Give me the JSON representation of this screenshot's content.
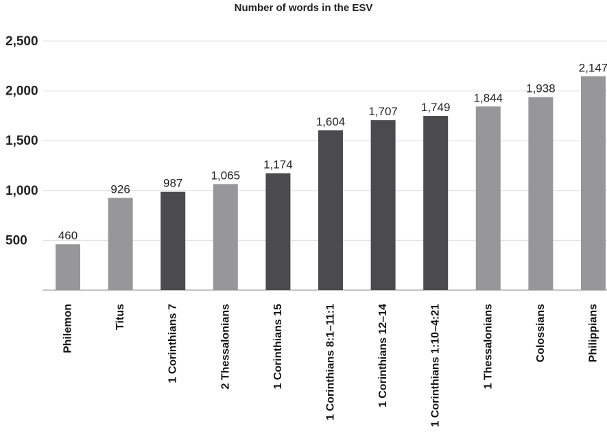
{
  "chart_data": {
    "type": "bar",
    "title": "Number of words in the ESV",
    "xlabel": "",
    "ylabel": "",
    "categories": [
      "Philemon",
      "Titus",
      "1 Corinthians 7",
      "2 Thessalonians",
      "1 Corinthians 15",
      "1 Corinthians 8:1–11:1",
      "1 Corinthians 12–14",
      "1 Corinthians 1:10–4:21",
      "1 Thessalonians",
      "Colossians",
      "Philippians"
    ],
    "values": [
      460,
      926,
      987,
      1065,
      1174,
      1604,
      1707,
      1749,
      1844,
      1938,
      2147
    ],
    "value_labels": [
      "460",
      "926",
      "987",
      "1,065",
      "1,174",
      "1,604",
      "1,707",
      "1,749",
      "1,844",
      "1,938",
      "2,147"
    ],
    "bar_colors": [
      "#97979a",
      "#97979a",
      "#4b4b4e",
      "#97979a",
      "#4b4b4e",
      "#4b4b4e",
      "#4b4b4e",
      "#4b4b4e",
      "#97979a",
      "#97979a",
      "#97979a"
    ],
    "yticks": [
      500,
      1000,
      1500,
      2000,
      2500
    ],
    "ytick_labels": [
      "500",
      "1,000",
      "1,500",
      "2,000",
      "2,500"
    ],
    "ylim": [
      0,
      2500
    ],
    "grid": true,
    "legend": "none",
    "colors": {
      "light_bar": "#97979a",
      "dark_bar": "#4b4b4e",
      "gridline": "#dcdcdc",
      "baseline": "#888888"
    }
  }
}
